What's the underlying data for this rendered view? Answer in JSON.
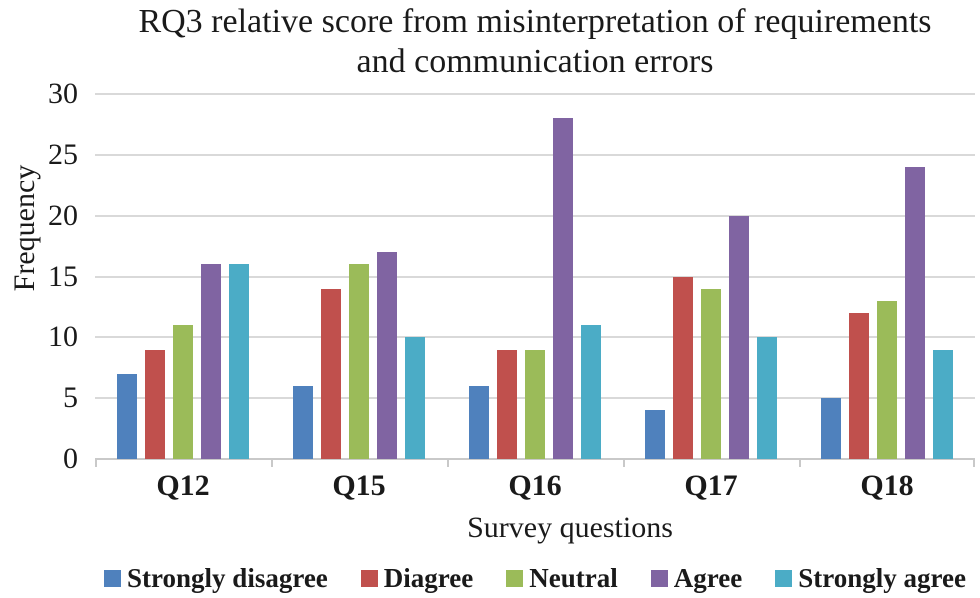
{
  "chart_data": {
    "type": "bar",
    "title": "RQ3 relative score from misinterpretation of requirements\nand communication errors",
    "xlabel": "Survey questions",
    "ylabel": "Frequency",
    "categories": [
      "Q12",
      "Q15",
      "Q16",
      "Q17",
      "Q18"
    ],
    "series": [
      {
        "name": "Strongly disagree",
        "color": "#4F81BD",
        "values": [
          7,
          6,
          6,
          4,
          5
        ]
      },
      {
        "name": "Diagree",
        "color": "#C0504D",
        "values": [
          9,
          14,
          9,
          15,
          12
        ]
      },
      {
        "name": "Neutral",
        "color": "#9BBB59",
        "values": [
          11,
          16,
          9,
          14,
          13
        ]
      },
      {
        "name": "Agree",
        "color": "#8064A2",
        "values": [
          16,
          17,
          28,
          20,
          24
        ]
      },
      {
        "name": "Strongly agree",
        "color": "#4BACC6",
        "values": [
          16,
          10,
          11,
          10,
          9
        ]
      }
    ],
    "ylim": [
      0,
      30
    ],
    "yticks": [
      0,
      5,
      10,
      15,
      20,
      25,
      30
    ],
    "grid": true,
    "legend_position": "bottom",
    "colors": {
      "gridline": "#D9D9D9",
      "axis_line": "#C9C9C9",
      "text": "#1A1A1A"
    }
  }
}
